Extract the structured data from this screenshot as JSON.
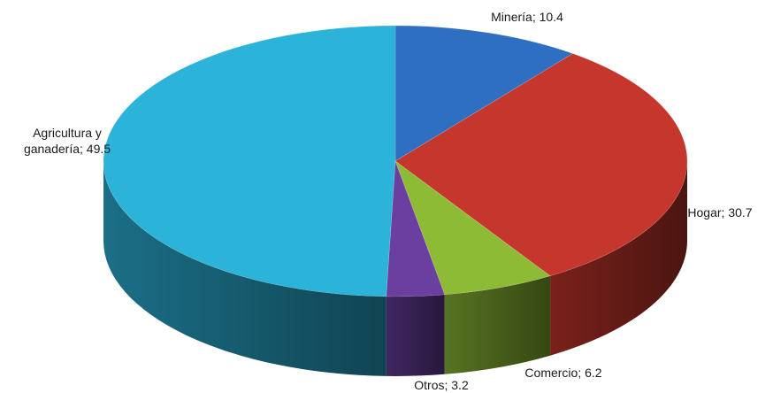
{
  "chart_data": {
    "type": "pie",
    "style": "3d",
    "title": "",
    "slices": [
      {
        "label": "Minería",
        "value": 10.4,
        "display": "Minería; 10.4",
        "color": "#2f6fc2"
      },
      {
        "label": "Hogar",
        "value": 30.7,
        "display": "Hogar; 30.7",
        "color": "#c5362c"
      },
      {
        "label": "Comercio",
        "value": 6.2,
        "display": "Comercio; 6.2",
        "color": "#8dbb35"
      },
      {
        "label": "Otros",
        "value": 3.2,
        "display": "Otros; 3.2",
        "color": "#6a3fa0"
      },
      {
        "label": "Agricultura y ganadería",
        "value": 49.5,
        "display_lines": [
          "Agricultura y",
          "ganadería; 49.5"
        ],
        "color": "#2bb3d9"
      }
    ],
    "legend": "none"
  }
}
